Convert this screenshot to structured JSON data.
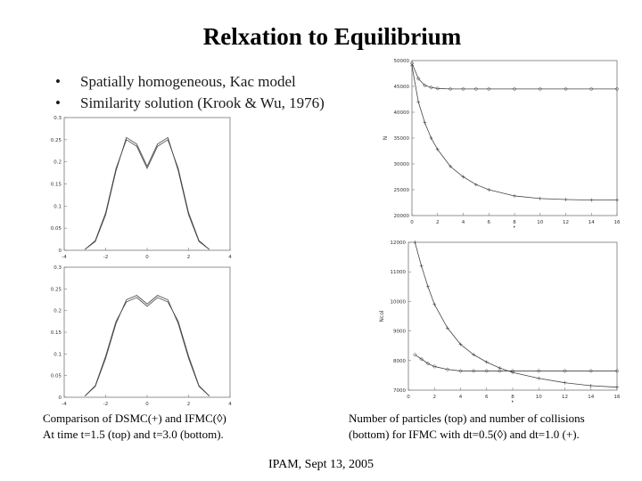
{
  "slide": {
    "title": "Relxation to Equilibrium",
    "bullets": [
      "Spatially homogeneous, Kac model",
      "Similarity solution (Krook & Wu, 1976)"
    ],
    "caption_left": [
      "Comparison of DSMC(+) and IFMC(◊)",
      "At time t=1.5 (top) and t=3.0 (bottom)."
    ],
    "caption_right": [
      "Number of particles (top) and number of collisions",
      "(bottom) for IFMC with dt=0.5(◊) and dt=1.0 (+)."
    ],
    "footer": "IPAM, Sept 13, 2005"
  },
  "chart_data": [
    {
      "type": "line",
      "xlim": [
        -4,
        4
      ],
      "ylim": [
        0,
        0.3
      ],
      "xticks": [
        "-4",
        "-2",
        "0",
        "2",
        "4"
      ],
      "yticks": [
        "0",
        "0.05",
        "0.1",
        "0.15",
        "0.2",
        "0.25",
        "0.3"
      ],
      "series": [
        {
          "x": [
            -3,
            -2.5,
            -2,
            -1.5,
            -1,
            -0.5,
            0,
            0.5,
            1,
            1.5,
            2,
            2.5,
            3
          ],
          "y": [
            0.002,
            0.02,
            0.08,
            0.18,
            0.255,
            0.24,
            0.19,
            0.24,
            0.255,
            0.18,
            0.08,
            0.02,
            0.002
          ]
        },
        {
          "x": [
            -3,
            -2.5,
            -2,
            -1.5,
            -1,
            -0.5,
            0,
            0.5,
            1,
            1.5,
            2,
            2.5,
            3
          ],
          "y": [
            0.002,
            0.022,
            0.085,
            0.185,
            0.25,
            0.235,
            0.185,
            0.235,
            0.25,
            0.185,
            0.085,
            0.022,
            0.002
          ]
        }
      ]
    },
    {
      "type": "line",
      "xlim": [
        -4,
        4
      ],
      "ylim": [
        0,
        0.3
      ],
      "xticks": [
        "-4",
        "-2",
        "0",
        "2",
        "4"
      ],
      "yticks": [
        "0",
        "0.05",
        "0.1",
        "0.15",
        "0.2",
        "0.25",
        "0.3"
      ],
      "series": [
        {
          "x": [
            -3,
            -2.5,
            -2,
            -1.5,
            -1,
            -0.5,
            0,
            0.5,
            1,
            1.5,
            2,
            2.5,
            3
          ],
          "y": [
            0.003,
            0.025,
            0.09,
            0.17,
            0.225,
            0.235,
            0.215,
            0.235,
            0.225,
            0.17,
            0.09,
            0.025,
            0.003
          ]
        },
        {
          "x": [
            -3,
            -2.5,
            -2,
            -1.5,
            -1,
            -0.5,
            0,
            0.5,
            1,
            1.5,
            2,
            2.5,
            3
          ],
          "y": [
            0.003,
            0.027,
            0.095,
            0.175,
            0.22,
            0.23,
            0.21,
            0.23,
            0.22,
            0.175,
            0.095,
            0.027,
            0.003
          ]
        }
      ]
    },
    {
      "type": "line",
      "xlim": [
        0,
        16
      ],
      "ylim": [
        20000,
        50000
      ],
      "xlabel": "t",
      "ylabel": "N",
      "xticks": [
        "0",
        "2",
        "4",
        "6",
        "8",
        "10",
        "12",
        "14",
        "16"
      ],
      "yticks": [
        "20000",
        "25000",
        "30000",
        "35000",
        "40000",
        "45000",
        "50000"
      ],
      "series": [
        {
          "x": [
            0,
            0.5,
            1,
            1.5,
            2,
            3,
            4,
            5,
            6,
            8,
            10,
            12,
            14,
            16
          ],
          "y": [
            49500,
            46500,
            45200,
            44800,
            44600,
            44500,
            44500,
            44500,
            44500,
            44500,
            44500,
            44500,
            44500,
            44500
          ]
        },
        {
          "x": [
            0,
            0.5,
            1,
            1.5,
            2,
            3,
            4,
            5,
            6,
            8,
            10,
            12,
            14,
            16
          ],
          "y": [
            49000,
            42000,
            38000,
            35000,
            32800,
            29500,
            27500,
            26000,
            25000,
            23800,
            23300,
            23100,
            23000,
            23000
          ]
        }
      ]
    },
    {
      "type": "line",
      "xlim": [
        0,
        16
      ],
      "ylim": [
        7000,
        12000
      ],
      "xlabel": "t",
      "ylabel": "Ncol",
      "xticks": [
        "0",
        "2",
        "4",
        "6",
        "8",
        "10",
        "12",
        "14",
        "16"
      ],
      "yticks": [
        "7000",
        "8000",
        "9000",
        "10000",
        "11000",
        "12000"
      ],
      "series": [
        {
          "x": [
            0.5,
            1,
            1.5,
            2,
            3,
            4,
            5,
            6,
            7,
            8,
            10,
            12,
            14,
            16
          ],
          "y": [
            8200,
            8050,
            7900,
            7800,
            7700,
            7650,
            7650,
            7650,
            7650,
            7650,
            7650,
            7650,
            7650,
            7650
          ]
        },
        {
          "x": [
            0.5,
            1,
            1.5,
            2,
            3,
            4,
            5,
            6,
            7,
            8,
            10,
            12,
            14,
            16
          ],
          "y": [
            12000,
            11200,
            10500,
            9900,
            9100,
            8550,
            8200,
            7950,
            7750,
            7600,
            7400,
            7250,
            7150,
            7100
          ]
        }
      ]
    }
  ]
}
